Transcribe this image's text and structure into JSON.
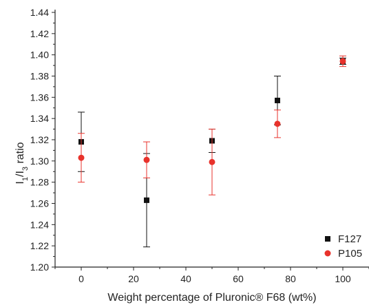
{
  "chart_data": {
    "type": "scatter",
    "xlabel": "Weight percentage of Pluronic® F68 (wt%)",
    "ylabel": {
      "i1": "I",
      "sub1": "1",
      "slash": "/I",
      "sub3": "3",
      "rest": " ratio"
    },
    "xlim": [
      -10,
      110
    ],
    "ylim": [
      1.2,
      1.44
    ],
    "x_ticks": [
      0,
      20,
      40,
      60,
      80,
      100
    ],
    "x_tick_labels": [
      "0",
      "20",
      "40",
      "60",
      "80",
      "100"
    ],
    "y_ticks": [
      1.2,
      1.22,
      1.24,
      1.26,
      1.28,
      1.3,
      1.32,
      1.34,
      1.36,
      1.38,
      1.4,
      1.42,
      1.44
    ],
    "y_tick_labels": [
      "1.20",
      "1.22",
      "1.24",
      "1.26",
      "1.28",
      "1.30",
      "1.32",
      "1.34",
      "1.36",
      "1.38",
      "1.40",
      "1.42",
      "1.44"
    ],
    "grid": false,
    "legend_position": "bottom-right",
    "series": [
      {
        "name": "F127",
        "marker": "square",
        "color": "#111111",
        "points": [
          {
            "x": 0,
            "y": 1.318,
            "err": 0.028
          },
          {
            "x": 25,
            "y": 1.263,
            "err": 0.044
          },
          {
            "x": 50,
            "y": 1.319,
            "err": 0.011
          },
          {
            "x": 75,
            "y": 1.357,
            "err": 0.023
          },
          {
            "x": 100,
            "y": 1.394,
            "err": 0.003
          }
        ]
      },
      {
        "name": "P105",
        "marker": "circle",
        "color": "#e8322b",
        "points": [
          {
            "x": 0,
            "y": 1.303,
            "err": 0.023
          },
          {
            "x": 25,
            "y": 1.301,
            "err": 0.017
          },
          {
            "x": 50,
            "y": 1.299,
            "err": 0.031
          },
          {
            "x": 75,
            "y": 1.335,
            "err": 0.013
          },
          {
            "x": 100,
            "y": 1.394,
            "err": 0.005
          }
        ]
      }
    ]
  }
}
